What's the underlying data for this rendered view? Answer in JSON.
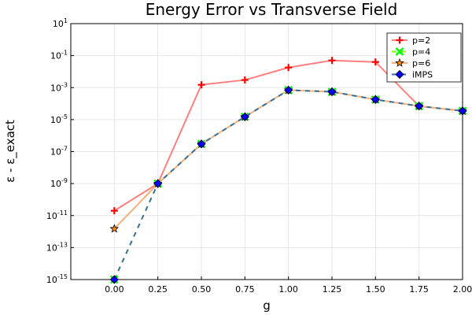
{
  "chart_data": {
    "type": "line",
    "title": "Energy Error vs Transverse Field",
    "xlabel": "g",
    "ylabel": "ε - ε_exact",
    "xlim": [
      -0.25,
      2.0
    ],
    "ylog": true,
    "ylim_exp": [
      -15,
      1
    ],
    "xticks": [
      {
        "value": 0.0,
        "label": "0.00"
      },
      {
        "value": 0.25,
        "label": "0.25"
      },
      {
        "value": 0.5,
        "label": "0.50"
      },
      {
        "value": 0.75,
        "label": "0.75"
      },
      {
        "value": 1.0,
        "label": "1.00"
      },
      {
        "value": 1.25,
        "label": "1.25"
      },
      {
        "value": 1.5,
        "label": "1.50"
      },
      {
        "value": 1.75,
        "label": "1.75"
      },
      {
        "value": 2.0,
        "label": "2.00"
      }
    ],
    "yticks": [
      {
        "exp": -15,
        "label": "-15"
      },
      {
        "exp": -13,
        "label": "-13"
      },
      {
        "exp": -11,
        "label": "-11"
      },
      {
        "exp": -9,
        "label": "-9"
      },
      {
        "exp": -7,
        "label": "-7"
      },
      {
        "exp": -5,
        "label": "-5"
      },
      {
        "exp": -3,
        "label": "-3"
      },
      {
        "exp": -1,
        "label": "-1"
      },
      {
        "exp": 1,
        "label": "1"
      }
    ],
    "ytick_base": "10",
    "grid": true,
    "legend_position": "top-right",
    "x": [
      0.0,
      0.25,
      0.5,
      0.75,
      1.0,
      1.25,
      1.5,
      1.75,
      2.0
    ],
    "series": [
      {
        "name": "p=2",
        "color": "#ff0000",
        "marker": "plus",
        "values": [
          2e-11,
          1e-09,
          0.0015,
          0.003,
          0.018,
          0.05,
          0.04,
          7e-05,
          3.5e-05
        ]
      },
      {
        "name": "p=4",
        "color": "#00ff00",
        "marker": "cross",
        "values": [
          1e-15,
          1e-09,
          3e-07,
          1.5e-05,
          0.0007,
          0.00055,
          0.00018,
          7e-05,
          3.5e-05
        ]
      },
      {
        "name": "p=6",
        "color": "#ff8c00",
        "marker": "star",
        "values": [
          1.5e-12,
          1e-09,
          3e-07,
          1.5e-05,
          0.0007,
          0.00055,
          0.00018,
          7e-05,
          3.5e-05
        ]
      },
      {
        "name": "iMPS",
        "color": "#0000ff",
        "marker": "diamond",
        "values": [
          1e-15,
          1e-09,
          3e-07,
          1.5e-05,
          0.0007,
          0.00055,
          0.00018,
          7e-05,
          3.5e-05
        ]
      }
    ]
  }
}
